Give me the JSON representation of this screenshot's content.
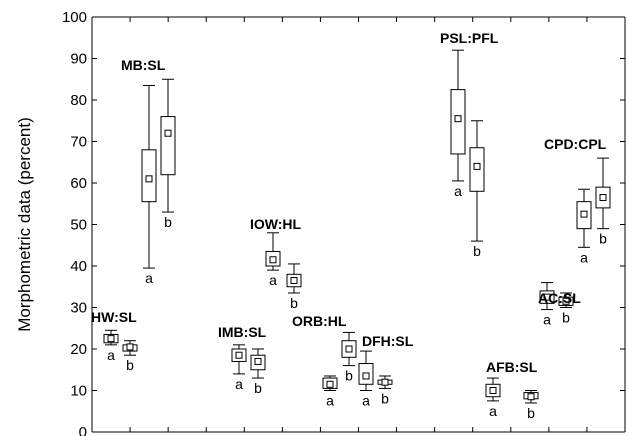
{
  "chart_data": {
    "type": "boxplot",
    "ylabel": "Morphometric data (percent)",
    "ylim": [
      0,
      100
    ],
    "yticks": [
      0,
      10,
      20,
      30,
      40,
      50,
      60,
      70,
      80,
      90,
      100
    ],
    "groups": [
      {
        "label": "HW:SL",
        "boxes": [
          {
            "median": 22.5,
            "q1": 21.5,
            "q3": 23.5,
            "min": 21.0,
            "max": 24.5,
            "letter": "a"
          },
          {
            "median": 20.5,
            "q1": 19.5,
            "q3": 21.0,
            "min": 18.5,
            "max": 22.0,
            "letter": "b"
          }
        ]
      },
      {
        "label": "MB:SL",
        "boxes": [
          {
            "median": 61,
            "q1": 55.5,
            "q3": 68,
            "min": 39.5,
            "max": 83.5,
            "letter": "a"
          },
          {
            "median": 72,
            "q1": 62,
            "q3": 76,
            "min": 53,
            "max": 85,
            "letter": "b"
          }
        ]
      },
      {
        "label": "IMB:SL",
        "boxes": [
          {
            "median": 18.5,
            "q1": 17,
            "q3": 20,
            "min": 14,
            "max": 21,
            "letter": "a"
          },
          {
            "median": 17,
            "q1": 15,
            "q3": 18.5,
            "min": 13,
            "max": 20,
            "letter": "b"
          }
        ]
      },
      {
        "label": "IOW:HL",
        "boxes": [
          {
            "median": 41.5,
            "q1": 40,
            "q3": 43.5,
            "min": 39,
            "max": 48,
            "letter": "a"
          },
          {
            "median": 36.5,
            "q1": 35,
            "q3": 38,
            "min": 33.5,
            "max": 40.5,
            "letter": "b"
          }
        ]
      },
      {
        "label": "ORB:HL",
        "boxes": [
          {
            "median": 11.5,
            "q1": 10.5,
            "q3": 13,
            "min": 10,
            "max": 13.5,
            "letter": "a"
          },
          {
            "median": 20,
            "q1": 18,
            "q3": 22,
            "min": 16,
            "max": 24,
            "letter": "b"
          }
        ]
      },
      {
        "label": "DFH:SL",
        "boxes": [
          {
            "median": 13.5,
            "q1": 11.5,
            "q3": 16.5,
            "min": 10,
            "max": 19.5,
            "letter": "a"
          },
          {
            "median": 12,
            "q1": 11.5,
            "q3": 12.5,
            "min": 10.5,
            "max": 13.5,
            "letter": "b"
          }
        ]
      },
      {
        "label": "PSL:PFL",
        "boxes": [
          {
            "median": 75.5,
            "q1": 67,
            "q3": 82.5,
            "min": 60.5,
            "max": 92,
            "letter": "a"
          },
          {
            "median": 64,
            "q1": 58,
            "q3": 68.5,
            "min": 46,
            "max": 75,
            "letter": "b"
          }
        ]
      },
      {
        "label": "AFB:SL",
        "boxes": [
          {
            "median": 10,
            "q1": 8.5,
            "q3": 11.5,
            "min": 7.5,
            "max": 13,
            "letter": "a"
          },
          {
            "median": 8.5,
            "q1": 8,
            "q3": 9.5,
            "min": 7,
            "max": 10,
            "letter": "b"
          }
        ]
      },
      {
        "label": "AC:SL",
        "boxes": [
          {
            "median": 32.5,
            "q1": 31,
            "q3": 34,
            "min": 29.5,
            "max": 36,
            "letter": "a"
          },
          {
            "median": 31.5,
            "q1": 30.5,
            "q3": 32.5,
            "min": 30,
            "max": 33.5,
            "letter": "b"
          }
        ]
      },
      {
        "label": "CPD:CPL",
        "boxes": [
          {
            "median": 52.5,
            "q1": 49,
            "q3": 55.5,
            "min": 44.5,
            "max": 58.5,
            "letter": "a"
          },
          {
            "median": 56.5,
            "q1": 54,
            "q3": 59,
            "min": 49,
            "max": 66,
            "letter": "b"
          }
        ]
      }
    ]
  }
}
